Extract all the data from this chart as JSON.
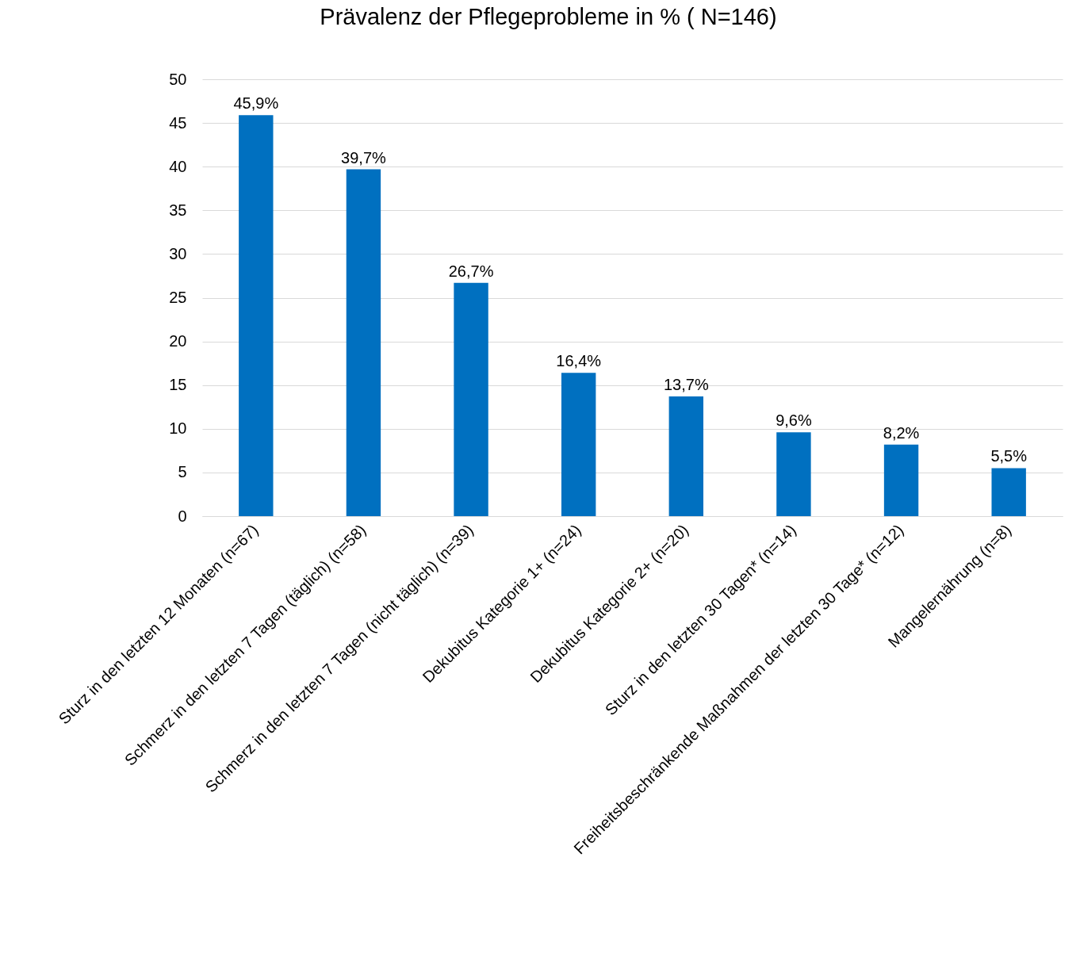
{
  "chart_data": {
    "type": "bar",
    "title": "Prävalenz der Pflegeprobleme in % ( N=146)",
    "categories": [
      "Sturz in den letzten 12 Monaten (n=67)",
      "Schmerz in den letzten 7 Tagen (täglich) (n=58)",
      "Schmerz in den letzten 7 Tagen (nicht täglich) (n=39)",
      "Dekubitus Kategorie 1+ (n=24)",
      "Dekubitus Kategorie 2+ (n=20)",
      "Sturz in den letzten 30 Tagen* (n=14)",
      "Freiheitsbeschränkende Maßnahmen der letzten 30 Tage* (n=12)",
      "Mangelernährung (n=8)"
    ],
    "values": [
      45.9,
      39.7,
      26.7,
      16.4,
      13.7,
      9.6,
      8.2,
      5.5
    ],
    "value_labels": [
      "45,9%",
      "39,7%",
      "26,7%",
      "16,4%",
      "13,7%",
      "9,6%",
      "8,2%",
      "5,5%"
    ],
    "color": "#0070c0",
    "ylim": [
      0,
      50
    ],
    "yticks": [
      0,
      5,
      10,
      15,
      20,
      25,
      30,
      35,
      40,
      45,
      50
    ],
    "grid": "y"
  }
}
